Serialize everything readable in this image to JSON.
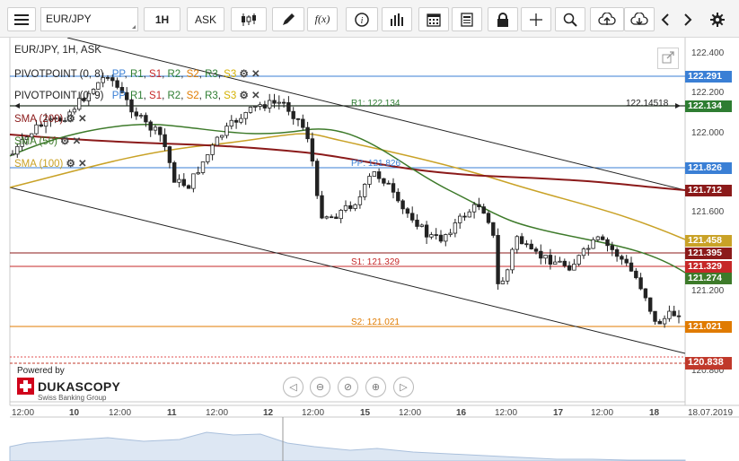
{
  "toolbar": {
    "symbol": "EUR/JPY",
    "timeframe": "1H",
    "price_side": "ASK",
    "icons": [
      "menu-icon",
      "candlestick-icon",
      "pencil-icon",
      "function-icon",
      "info-icon",
      "bar-chart-icon",
      "calendar-icon",
      "document-icon",
      "lock-icon",
      "crosshair-icon",
      "zoom-icon",
      "upload-cloud-icon",
      "download-cloud-icon",
      "chevron-left-icon",
      "chevron-right-icon",
      "gear-icon"
    ]
  },
  "chart": {
    "title": "EUR/JPY, 1H, ASK",
    "legend": [
      {
        "name": "PIVOTPOINT (0, 8)",
        "color": "#333333"
      },
      {
        "name": "PIVOTPOINT (0, 9)",
        "color": "#333333"
      },
      {
        "name": "SMA (200)",
        "color": "#8b1a1a"
      },
      {
        "name": "SMA (50)",
        "color": "#3d7a2a"
      },
      {
        "name": "SMA (100)",
        "color": "#c9a227"
      }
    ],
    "pivot_tags": [
      {
        "label": "PP",
        "color": "#3a7fd5"
      },
      {
        "label": "R1",
        "color": "#2e7d32"
      },
      {
        "label": "S1",
        "color": "#c62828"
      },
      {
        "label": "R2",
        "color": "#2e7d32"
      },
      {
        "label": "S2",
        "color": "#e07b00"
      },
      {
        "label": "R3",
        "color": "#2e7d32"
      },
      {
        "label": "S3",
        "color": "#d4b000"
      }
    ],
    "line_labels": {
      "r1": "R1: 122.134",
      "cross": "122.14518",
      "pp": "PP: 121.826",
      "s1": "S1: 121.329",
      "s2": "S2: 121.021"
    },
    "y_ticks": [
      "122.400",
      "122.200",
      "122.000",
      "121.600",
      "121.200",
      "120.800"
    ],
    "x_ticks": [
      "12:00",
      "10",
      "12:00",
      "11",
      "12:00",
      "12",
      "12:00",
      "15",
      "12:00",
      "16",
      "12:00",
      "17",
      "12:00",
      "18",
      "18.07.2019"
    ],
    "price_labels": [
      {
        "value": "122.291",
        "color": "#3a7fd5"
      },
      {
        "value": "122.134",
        "color": "#2e7d32"
      },
      {
        "value": "121.826",
        "color": "#3a7fd5"
      },
      {
        "value": "121.712",
        "color": "#8b1a1a"
      },
      {
        "value": "121.458",
        "color": "#c9a227"
      },
      {
        "value": "121.395",
        "color": "#8b1a1a"
      },
      {
        "value": "121.329",
        "color": "#c62828"
      },
      {
        "value": "121.274",
        "color": "#3d7a2a"
      },
      {
        "value": "121.021",
        "color": "#e07b00"
      },
      {
        "value": "120.838",
        "color": "#c0392b"
      }
    ]
  },
  "branding": {
    "powered_by": "Powered by",
    "name": "DUKASCOPY",
    "subtitle": "Swiss Banking Group"
  }
}
